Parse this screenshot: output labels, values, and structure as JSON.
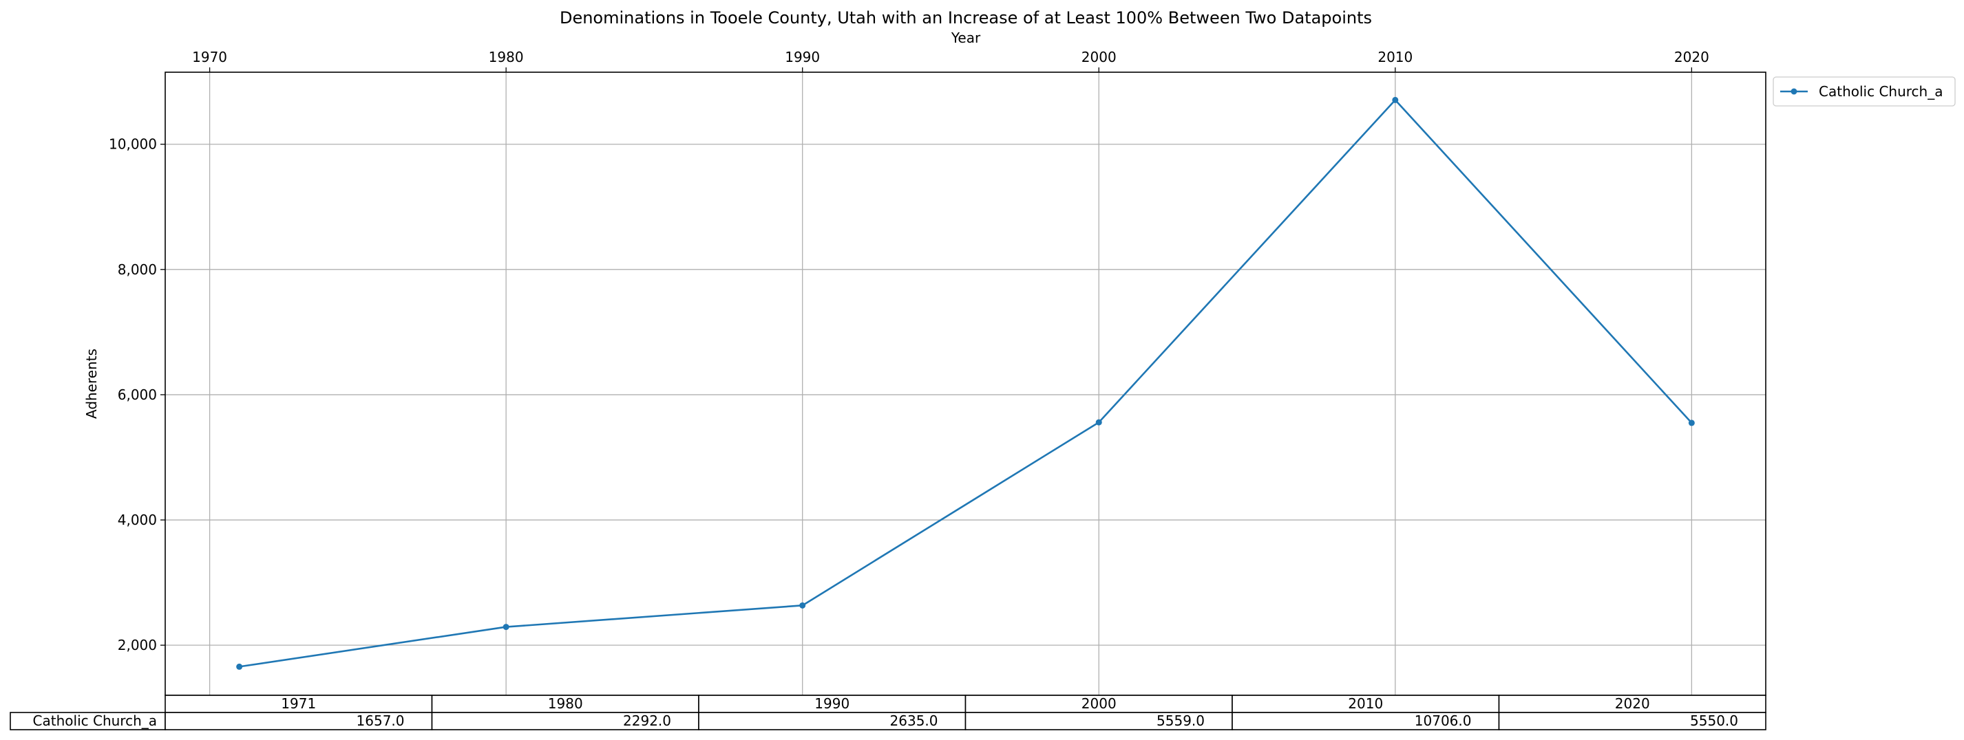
{
  "chart_data": {
    "type": "line",
    "title": "Denominations in Tooele County, Utah with an Increase of at Least 100% Between Two Datapoints",
    "xlabel": "Year",
    "ylabel": "Adherents",
    "x": [
      1971,
      1980,
      1990,
      2000,
      2010,
      2020
    ],
    "x_ticks": [
      1970,
      1980,
      1990,
      2000,
      2010,
      2020
    ],
    "x_tick_labels": [
      "1970",
      "1980",
      "1990",
      "2000",
      "2010",
      "2020"
    ],
    "xlim": [
      1968.5,
      2022.5
    ],
    "ylim": [
      1200,
      11150
    ],
    "y_ticks": [
      2000,
      4000,
      6000,
      8000,
      10000
    ],
    "y_tick_labels": [
      "2,000",
      "4,000",
      "6,000",
      "8,000",
      "10,000"
    ],
    "x_axis_position": "top",
    "grid": true,
    "legend_position": "outside-right-top",
    "series": [
      {
        "name": "Catholic Church_a",
        "color": "#1f77b4",
        "values": [
          1657,
          2292,
          2635,
          5559,
          10706,
          5550
        ]
      }
    ],
    "table": {
      "columns": [
        "1971",
        "1980",
        "1990",
        "2000",
        "2010",
        "2020"
      ],
      "rows": [
        {
          "label": "Catholic Church_a",
          "cells": [
            "1657.0",
            "2292.0",
            "2635.0",
            "5559.0",
            "10706.0",
            "5550.0"
          ]
        }
      ]
    }
  }
}
